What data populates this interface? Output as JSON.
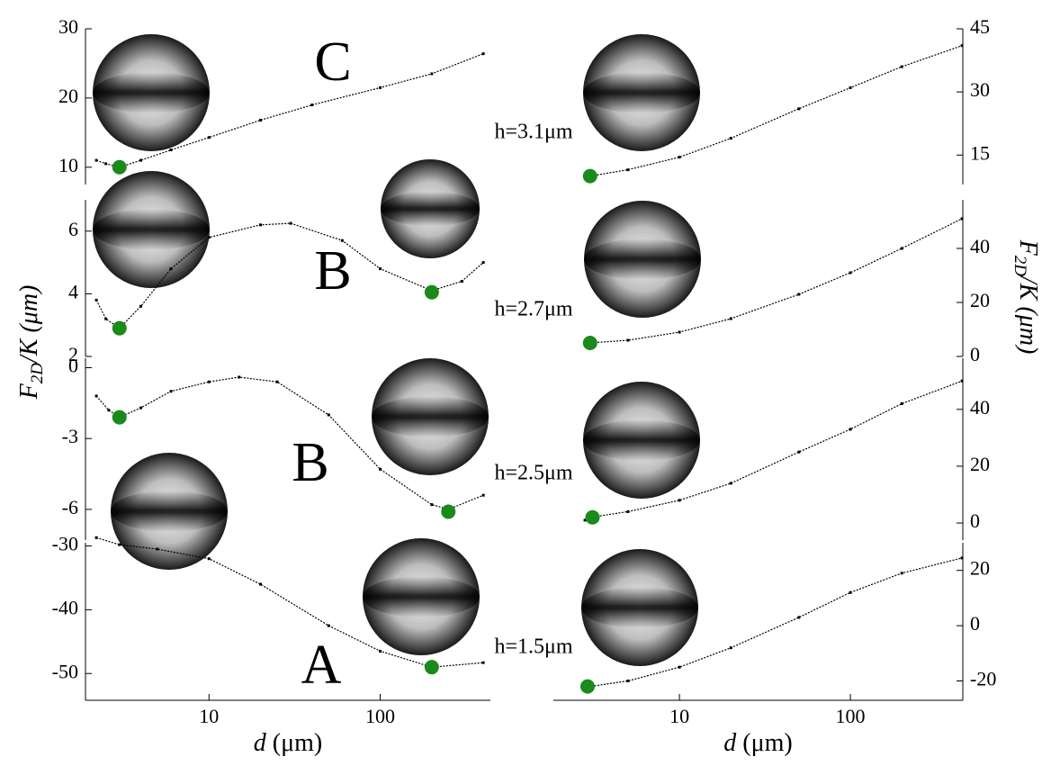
{
  "chart_data": [
    {
      "type": "line",
      "log_x": true,
      "xlim": [
        1.9,
        440
      ],
      "xticks": [
        10,
        100
      ],
      "xtick_labels": false,
      "ylim": [
        7.5,
        30
      ],
      "yticks": [
        10,
        20,
        30
      ],
      "yaxis_side": "left",
      "annotation": "C",
      "h_label": "h=3.1μm",
      "color": "#000000",
      "x": [
        2.2,
        2.5,
        3,
        4,
        6,
        10,
        20,
        40,
        100,
        200,
        400
      ],
      "values": [
        11,
        10.5,
        10,
        11,
        12.5,
        14.3,
        16.8,
        19,
        21.5,
        23.5,
        26.4
      ],
      "minima": {
        "color": "#1a8a1a",
        "x": [
          3
        ],
        "values": [
          10
        ]
      }
    },
    {
      "type": "line",
      "log_x": true,
      "xlim": [
        1.9,
        440
      ],
      "xticks": [
        10,
        100
      ],
      "xtick_labels": false,
      "ylim": [
        2,
        7
      ],
      "yticks": [
        2,
        4,
        6
      ],
      "yaxis_side": "left",
      "annotation": "B",
      "h_label": "h=2.7μm",
      "color": "#000000",
      "x": [
        2.2,
        2.5,
        3,
        4,
        6,
        10,
        20,
        30,
        60,
        100,
        200,
        300,
        400
      ],
      "values": [
        3.8,
        3.2,
        2.9,
        3.6,
        4.8,
        5.8,
        6.2,
        6.25,
        5.7,
        4.8,
        4.1,
        4.4,
        5.0
      ],
      "minima": {
        "color": "#1a8a1a",
        "x": [
          3,
          200
        ],
        "values": [
          2.9,
          4.05
        ]
      }
    },
    {
      "type": "line",
      "log_x": true,
      "xlim": [
        1.9,
        440
      ],
      "xticks": [
        10,
        100
      ],
      "xtick_labels": false,
      "ylim": [
        -7.3,
        0.4
      ],
      "yticks": [
        -6,
        -3,
        0
      ],
      "yaxis_side": "left",
      "annotation": "B",
      "h_label": "h=2.5μm",
      "color": "#000000",
      "ylabel": {
        "main": "F",
        "sub": "2D",
        "rest": "/K (μm)"
      },
      "x": [
        2.2,
        2.6,
        3,
        4,
        6,
        10,
        15,
        25,
        50,
        100,
        200,
        250,
        400
      ],
      "values": [
        -1.2,
        -1.8,
        -2.1,
        -1.7,
        -1.0,
        -0.6,
        -0.4,
        -0.6,
        -2.0,
        -4.3,
        -5.8,
        -6.0,
        -5.4
      ],
      "minima": {
        "color": "#1a8a1a",
        "x": [
          3,
          250
        ],
        "values": [
          -2.1,
          -6.1
        ]
      }
    },
    {
      "type": "line",
      "log_x": true,
      "xlim": [
        1.9,
        440
      ],
      "xticks": [
        10,
        100
      ],
      "xtick_labels": true,
      "ylim": [
        -54.2,
        -29.5
      ],
      "yticks": [
        -50,
        -40,
        -30
      ],
      "yaxis_side": "left",
      "annotation": "A",
      "h_label": "h=1.5μm",
      "color": "#000000",
      "xlabel": {
        "main": "d",
        "rest": " (μm)"
      },
      "x": [
        2.2,
        3,
        5,
        10,
        20,
        50,
        100,
        200,
        400
      ],
      "values": [
        -28.7,
        -29.8,
        -30.5,
        -32,
        -36,
        -42.5,
        -46.5,
        -49,
        -48.3
      ],
      "minima": {
        "color": "#1a8a1a",
        "x": [
          200
        ],
        "values": [
          -49
        ]
      }
    },
    {
      "type": "line",
      "log_x": true,
      "xlim": [
        1.83,
        455
      ],
      "xticks": [
        10,
        100
      ],
      "xtick_labels": false,
      "ylim": [
        8,
        45
      ],
      "yticks": [
        15,
        30,
        45
      ],
      "yaxis_side": "right",
      "color": "#000000",
      "x": [
        2.8,
        3,
        5,
        10,
        20,
        50,
        100,
        200,
        450
      ],
      "values": [
        10.5,
        10,
        11.5,
        14.5,
        19,
        26,
        31,
        36,
        41
      ],
      "minima": {
        "color": "#1a8a1a",
        "x": [
          3
        ],
        "values": [
          10
        ]
      }
    },
    {
      "type": "line",
      "log_x": true,
      "xlim": [
        1.83,
        455
      ],
      "xticks": [
        10,
        100
      ],
      "xtick_labels": false,
      "ylim": [
        0,
        58
      ],
      "yticks": [
        0,
        20,
        40
      ],
      "yaxis_side": "right",
      "color": "#000000",
      "ylabel": {
        "main": "F",
        "sub": "2D",
        "rest": "/K (μm)"
      },
      "x": [
        2.8,
        3,
        5,
        10,
        20,
        50,
        100,
        200,
        450
      ],
      "values": [
        5,
        5,
        6,
        9,
        14,
        23,
        31,
        40,
        51
      ],
      "minima": {
        "color": "#1a8a1a",
        "x": [
          3
        ],
        "values": [
          5
        ]
      }
    },
    {
      "type": "line",
      "log_x": true,
      "xlim": [
        1.83,
        455
      ],
      "xticks": [
        10,
        100
      ],
      "xtick_labels": false,
      "ylim": [
        -6,
        58
      ],
      "yticks": [
        0,
        20,
        40
      ],
      "yaxis_side": "right",
      "color": "#000000",
      "x": [
        2.8,
        3,
        5,
        10,
        20,
        50,
        100,
        200,
        450
      ],
      "values": [
        1,
        2,
        4,
        8,
        14,
        25,
        33,
        42,
        50
      ],
      "minima": {
        "color": "#1a8a1a",
        "x": [
          3.1
        ],
        "values": [
          2
        ]
      }
    },
    {
      "type": "line",
      "log_x": true,
      "xlim": [
        1.83,
        455
      ],
      "xticks": [
        10,
        100
      ],
      "xtick_labels": true,
      "ylim": [
        -27,
        30
      ],
      "yticks": [
        -20,
        0,
        20
      ],
      "yaxis_side": "right",
      "color": "#000000",
      "xlabel": {
        "main": "d",
        "rest": " (μm)"
      },
      "x": [
        2.8,
        3,
        5,
        10,
        20,
        50,
        100,
        200,
        450
      ],
      "values": [
        -22,
        -22,
        -20,
        -15,
        -8,
        3,
        12,
        19,
        24.5
      ],
      "minima": {
        "color": "#1a8a1a",
        "x": [
          2.9
        ],
        "values": [
          -22
        ]
      }
    }
  ]
}
